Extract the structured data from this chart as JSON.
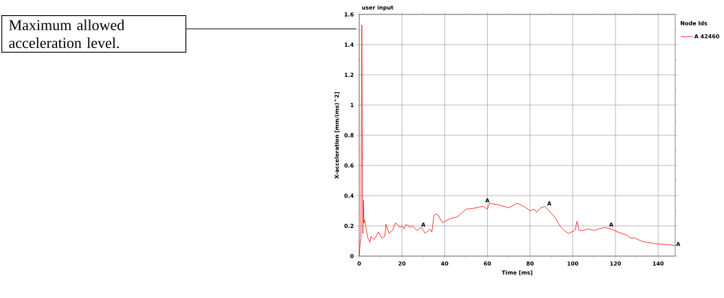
{
  "chart_data": {
    "type": "line",
    "title": "user input",
    "xlabel": "Time [ms]",
    "ylabel": "X-acceleration [mm/(ms)^2]",
    "legend_title": "Node Ids",
    "xlim": [
      0,
      148
    ],
    "ylim": [
      0,
      1.6
    ],
    "xticks": [
      0,
      20,
      40,
      60,
      80,
      100,
      120,
      140
    ],
    "yticks": [
      0,
      0.2,
      0.4,
      0.6,
      0.8,
      1,
      1.2,
      1.4,
      1.6
    ],
    "grid": true,
    "legend": "right",
    "marker": "none",
    "line_style": "solid",
    "x": [
      0,
      0.5,
      0.8,
      1.2,
      1.5,
      1.7,
      2,
      2.2,
      2.5,
      3,
      4,
      5,
      5.5,
      7,
      9,
      10.5,
      12,
      12.5,
      14,
      15.5,
      17,
      19,
      20,
      21,
      22,
      24,
      25,
      27,
      29,
      31,
      33,
      34,
      35,
      36.5,
      39,
      40,
      43,
      46,
      50,
      55,
      58,
      60,
      61,
      65,
      70,
      74,
      77,
      80,
      82,
      83,
      85,
      87,
      89,
      92,
      94,
      96,
      98,
      101,
      102,
      103,
      105,
      107,
      110,
      112,
      115,
      118,
      121,
      125,
      127,
      129,
      132,
      135,
      140,
      145,
      148
    ],
    "series": [
      {
        "name": "A 42460",
        "color": "#ff0000",
        "values": [
          0,
          0.1,
          0.12,
          1.53,
          0.49,
          0.15,
          0.37,
          0.22,
          0.24,
          0.2,
          0.12,
          0.09,
          0.13,
          0.11,
          0.16,
          0.12,
          0.13,
          0.21,
          0.15,
          0.17,
          0.22,
          0.19,
          0.2,
          0.18,
          0.21,
          0.19,
          0.2,
          0.17,
          0.19,
          0.15,
          0.18,
          0.16,
          0.27,
          0.28,
          0.22,
          0.23,
          0.25,
          0.26,
          0.31,
          0.32,
          0.33,
          0.31,
          0.35,
          0.34,
          0.32,
          0.35,
          0.33,
          0.3,
          0.31,
          0.29,
          0.32,
          0.33,
          0.3,
          0.25,
          0.2,
          0.17,
          0.15,
          0.17,
          0.23,
          0.17,
          0.17,
          0.18,
          0.17,
          0.18,
          0.19,
          0.18,
          0.16,
          0.14,
          0.12,
          0.12,
          0.1,
          0.09,
          0.08,
          0.075,
          0.07
        ]
      }
    ],
    "annotations": [
      "Maximum allowed acceleration level.",
      {
        "text": "A",
        "x": 30,
        "y": 0.19
      },
      {
        "text": "A",
        "x": 60,
        "y": 0.35
      },
      {
        "text": "A",
        "x": 89,
        "y": 0.33
      },
      {
        "text": "A",
        "x": 118,
        "y": 0.19
      },
      {
        "text": "A",
        "x": 148,
        "y": 0.08
      }
    ]
  }
}
